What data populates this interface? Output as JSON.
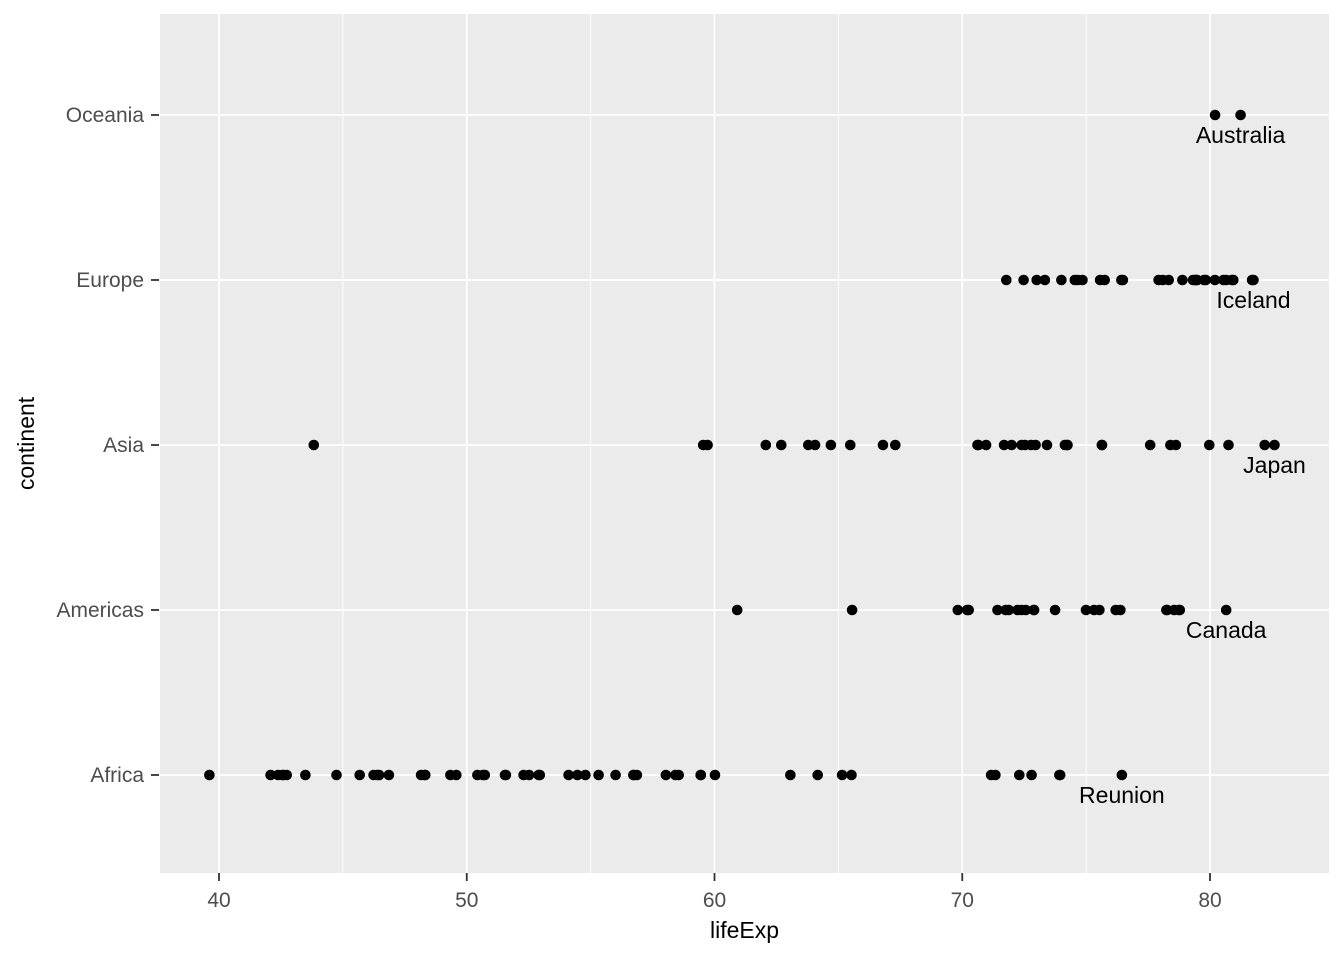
{
  "chart_data": {
    "type": "scatter",
    "title": "",
    "xlabel": "lifeExp",
    "ylabel": "continent",
    "x_ticks": [
      40,
      50,
      60,
      70,
      80
    ],
    "x_minor_gridlines": [
      45,
      55,
      65,
      75
    ],
    "xlim": [
      37.6,
      84.8
    ],
    "grid": true,
    "legend_position": "none",
    "categories_top_to_bottom": [
      "Oceania",
      "Europe",
      "Asia",
      "Americas",
      "Africa"
    ],
    "series": [
      {
        "name": "Oceania",
        "values": [
          80.204,
          81.235
        ]
      },
      {
        "name": "Europe",
        "values": [
          76.423,
          79.829,
          79.441,
          74.852,
          73.005,
          75.748,
          76.486,
          78.332,
          79.313,
          80.657,
          79.406,
          79.483,
          73.338,
          81.757,
          78.885,
          80.546,
          74.543,
          79.762,
          80.196,
          75.563,
          78.098,
          72.476,
          74.002,
          74.663,
          77.926,
          80.941,
          80.884,
          81.701,
          71.777,
          79.425
        ]
      },
      {
        "name": "Asia",
        "values": [
          43.828,
          75.635,
          64.062,
          59.723,
          72.961,
          82.208,
          64.698,
          70.65,
          70.964,
          59.545,
          80.745,
          82.603,
          72.535,
          67.297,
          78.623,
          77.588,
          71.993,
          74.241,
          66.803,
          62.069,
          63.785,
          75.64,
          65.483,
          71.688,
          72.777,
          79.972,
          72.396,
          74.143,
          78.4,
          70.616,
          74.249,
          73.422,
          62.698
        ]
      },
      {
        "name": "Americas",
        "values": [
          75.32,
          65.554,
          72.39,
          80.653,
          78.553,
          72.889,
          78.782,
          78.273,
          72.235,
          74.994,
          71.878,
          70.259,
          60.916,
          70.198,
          72.567,
          76.195,
          72.899,
          75.537,
          71.752,
          71.421,
          78.746,
          69.819,
          78.242,
          76.384,
          73.747
        ]
      },
      {
        "name": "Africa",
        "values": [
          72.301,
          42.731,
          56.728,
          50.728,
          52.295,
          49.58,
          50.43,
          44.741,
          50.651,
          65.152,
          46.462,
          55.322,
          48.328,
          54.791,
          71.338,
          51.579,
          58.04,
          52.947,
          56.735,
          59.448,
          60.022,
          56.007,
          46.388,
          54.11,
          42.592,
          45.678,
          73.952,
          59.443,
          48.303,
          54.467,
          64.164,
          72.801,
          71.164,
          42.082,
          52.906,
          56.867,
          46.859,
          76.442,
          46.242,
          65.528,
          63.062,
          42.568,
          48.159,
          49.339,
          58.556,
          39.613,
          52.517,
          58.42,
          73.923,
          51.542,
          42.384,
          43.487
        ]
      }
    ],
    "annotations": [
      {
        "text": "Australia",
        "category": "Oceania",
        "x": 81.235
      },
      {
        "text": "Iceland",
        "category": "Europe",
        "x": 81.757
      },
      {
        "text": "Japan",
        "category": "Asia",
        "x": 82.603
      },
      {
        "text": "Canada",
        "category": "Americas",
        "x": 80.653
      },
      {
        "text": "Reunion",
        "category": "Africa",
        "x": 76.442
      }
    ],
    "style": {
      "panel_bg": "#EBEBEB",
      "grid_color": "#FFFFFF",
      "point_color": "#000000",
      "axis_text_color": "#4D4D4D",
      "axis_title_color": "#000000",
      "tick_mark_color": "#333333",
      "annotation_color": "#000000"
    }
  }
}
